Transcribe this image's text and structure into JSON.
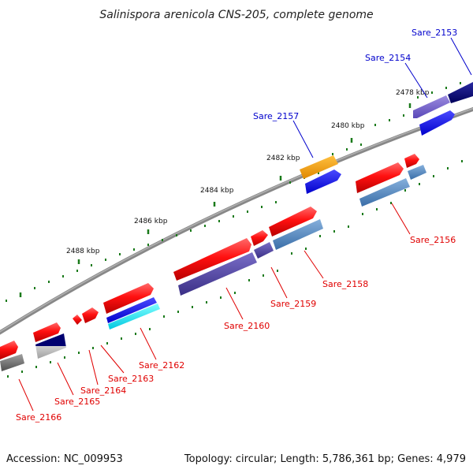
{
  "title": "Salinispora arenicola CNS-205, complete genome",
  "footer": {
    "accession": "Accession: NC_009953",
    "summary": "Topology: circular; Length: 5,786,361 bp; Genes: 4,979"
  },
  "scale_labels": [
    "2478 kbp",
    "2480 kbp",
    "2482 kbp",
    "2484 kbp",
    "2486 kbp",
    "2488 kbp"
  ],
  "gene_labels": {
    "Sare_2153": "Sare_2153",
    "Sare_2154": "Sare_2154",
    "Sare_2157": "Sare_2157",
    "Sare_2156": "Sare_2156",
    "Sare_2158": "Sare_2158",
    "Sare_2159": "Sare_2159",
    "Sare_2160": "Sare_2160",
    "Sare_2162": "Sare_2162",
    "Sare_2163": "Sare_2163",
    "Sare_2164": "Sare_2164",
    "Sare_2165": "Sare_2165",
    "Sare_2166": "Sare_2166"
  },
  "colors": {
    "backbone": "#808080",
    "tick": "#1a7a1a",
    "forward_gene": "#ff0000",
    "label_blue": "#0000cc",
    "label_red": "#e00000"
  }
}
